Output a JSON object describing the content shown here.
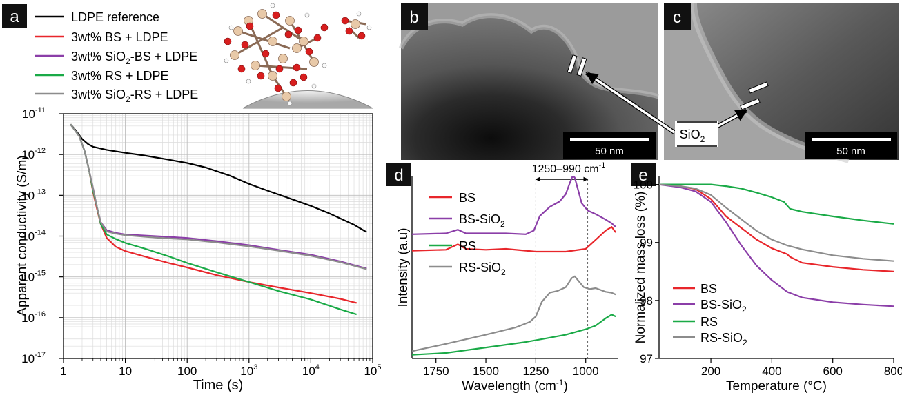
{
  "panels": {
    "a": "a",
    "b": "b",
    "c": "c",
    "d": "d",
    "e": "e"
  },
  "scale_bar": {
    "b": "50 nm",
    "c": "50 nm"
  },
  "sio2_label": {
    "base": "SiO",
    "sub": "2"
  },
  "chart_data": [
    {
      "id": "a",
      "type": "line",
      "x_scale": "log",
      "y_scale": "log",
      "xlabel": "Time (s)",
      "ylabel": "Apparent conductivity (S/m)",
      "xlim": [
        1,
        100000
      ],
      "ylim": [
        1e-17,
        1e-11
      ],
      "x_ticks": [
        {
          "v": 1,
          "label": "1"
        },
        {
          "v": 10,
          "label": "10"
        },
        {
          "v": 100,
          "label": "100"
        },
        {
          "v": 1000,
          "base": "10",
          "exp": "3"
        },
        {
          "v": 10000,
          "base": "10",
          "exp": "4"
        },
        {
          "v": 100000,
          "base": "10",
          "exp": "5"
        }
      ],
      "y_ticks": [
        {
          "v": -17,
          "base": "10",
          "exp": "-17"
        },
        {
          "v": -16,
          "base": "10",
          "exp": "-16"
        },
        {
          "v": -15,
          "base": "10",
          "exp": "-15"
        },
        {
          "v": -14,
          "base": "10",
          "exp": "-14"
        },
        {
          "v": -13,
          "base": "10",
          "exp": "-13"
        },
        {
          "v": -12,
          "base": "10",
          "exp": "-12"
        },
        {
          "v": -11,
          "base": "10",
          "exp": "-11"
        }
      ],
      "grid": true,
      "legend_position": "top-left outside",
      "series": [
        {
          "name": "LDPE reference",
          "name_parts": [
            "LDPE reference"
          ],
          "color": "#000000",
          "points": [
            [
              1.3,
              5.5e-12
            ],
            [
              1.6,
              3.8e-12
            ],
            [
              2.0,
              2.4e-12
            ],
            [
              2.5,
              1.8e-12
            ],
            [
              3,
              1.55e-12
            ],
            [
              5,
              1.3e-12
            ],
            [
              10,
              1.1e-12
            ],
            [
              20,
              9.5e-13
            ],
            [
              50,
              7.5e-13
            ],
            [
              100,
              6.2e-13
            ],
            [
              200,
              4.8e-13
            ],
            [
              500,
              3e-13
            ],
            [
              1000,
              1.9e-13
            ],
            [
              2000,
              1.3e-13
            ],
            [
              5000,
              8e-14
            ],
            [
              10000,
              5.5e-14
            ],
            [
              20000,
              3.6e-14
            ],
            [
              50000,
              1.9e-14
            ],
            [
              80000,
              1.25e-14
            ]
          ]
        },
        {
          "name": "3wt% BS + LDPE",
          "name_parts": [
            "3wt% BS + LDPE"
          ],
          "color": "#e8262b",
          "points": [
            [
              1.3,
              5.5e-12
            ],
            [
              1.8,
              2.8e-12
            ],
            [
              2.2,
              1.2e-12
            ],
            [
              2.6,
              4e-13
            ],
            [
              3,
              1.2e-13
            ],
            [
              3.5,
              4.5e-14
            ],
            [
              4,
              2e-14
            ],
            [
              5,
              9e-15
            ],
            [
              7,
              5.5e-15
            ],
            [
              10,
              4.3e-15
            ],
            [
              20,
              3.2e-15
            ],
            [
              50,
              2.2e-15
            ],
            [
              100,
              1.7e-15
            ],
            [
              300,
              1.1e-15
            ],
            [
              1000,
              7.5e-16
            ],
            [
              3000,
              5.5e-16
            ],
            [
              10000,
              4e-16
            ],
            [
              30000,
              2.9e-16
            ],
            [
              55000,
              2.3e-16
            ]
          ]
        },
        {
          "name": "3wt% SiO2-BS + LDPE",
          "name_parts": [
            "3wt% SiO",
            "2",
            "-BS + LDPE"
          ],
          "color": "#8b3ea8",
          "points": [
            [
              1.3,
              5.5e-12
            ],
            [
              1.8,
              2.8e-12
            ],
            [
              2.2,
              1.2e-12
            ],
            [
              2.6,
              4e-13
            ],
            [
              3,
              1.5e-13
            ],
            [
              3.5,
              5e-14
            ],
            [
              4,
              2.2e-14
            ],
            [
              5,
              1.4e-14
            ],
            [
              7,
              1.2e-14
            ],
            [
              10,
              1.1e-14
            ],
            [
              30,
              1e-14
            ],
            [
              100,
              9e-15
            ],
            [
              300,
              7.5e-15
            ],
            [
              1000,
              6e-15
            ],
            [
              3000,
              4.6e-15
            ],
            [
              10000,
              3.5e-15
            ],
            [
              30000,
              2.4e-15
            ],
            [
              80000,
              1.6e-15
            ]
          ]
        },
        {
          "name": "3wt% RS + LDPE",
          "name_parts": [
            "3wt% RS + LDPE"
          ],
          "color": "#1aaa47",
          "points": [
            [
              1.3,
              5.5e-12
            ],
            [
              1.8,
              2.8e-12
            ],
            [
              2.2,
              1.2e-12
            ],
            [
              2.6,
              4e-13
            ],
            [
              3,
              1.3e-13
            ],
            [
              3.5,
              5e-14
            ],
            [
              4,
              2e-14
            ],
            [
              5,
              1.1e-14
            ],
            [
              7,
              8.5e-15
            ],
            [
              10,
              6.8e-15
            ],
            [
              20,
              5e-15
            ],
            [
              50,
              3.2e-15
            ],
            [
              100,
              2.2e-15
            ],
            [
              300,
              1.3e-15
            ],
            [
              1000,
              7.5e-16
            ],
            [
              3000,
              4.5e-16
            ],
            [
              10000,
              2.8e-16
            ],
            [
              30000,
              1.6e-16
            ],
            [
              55000,
              1.2e-16
            ]
          ]
        },
        {
          "name": "3wt% SiO2-RS + LDPE",
          "name_parts": [
            "3wt% SiO",
            "2",
            "-RS + LDPE"
          ],
          "color": "#8c8c8c",
          "points": [
            [
              1.3,
              5.5e-12
            ],
            [
              1.8,
              2.8e-12
            ],
            [
              2.2,
              1.2e-12
            ],
            [
              2.6,
              4e-13
            ],
            [
              3,
              1.5e-13
            ],
            [
              3.5,
              5e-14
            ],
            [
              4,
              2.2e-14
            ],
            [
              5,
              1.3e-14
            ],
            [
              7,
              1.15e-14
            ],
            [
              10,
              1.05e-14
            ],
            [
              30,
              9.2e-15
            ],
            [
              100,
              8.3e-15
            ],
            [
              300,
              7e-15
            ],
            [
              1000,
              5.6e-15
            ],
            [
              3000,
              4.4e-15
            ],
            [
              10000,
              3.3e-15
            ],
            [
              30000,
              2.3e-15
            ],
            [
              80000,
              1.55e-15
            ]
          ]
        }
      ]
    },
    {
      "id": "d",
      "type": "line",
      "xlabel": "Wavelength (cm",
      "xlabel_sup": "-1",
      "xlabel_end": ")",
      "ylabel": "Intensity (a.u)",
      "xlim": [
        1870,
        840
      ],
      "x_reversed": true,
      "x_ticks": [
        1750,
        1500,
        1250,
        1000
      ],
      "annotation": {
        "text": "1250–990 cm",
        "sup": "-1",
        "from": 1250,
        "to": 990
      },
      "legend_position": "top-left",
      "series": [
        {
          "name": "BS",
          "name_parts": [
            "BS"
          ],
          "color": "#e8262b",
          "points": [
            [
              1870,
              0.59
            ],
            [
              1700,
              0.595
            ],
            [
              1640,
              0.625
            ],
            [
              1600,
              0.6
            ],
            [
              1500,
              0.595
            ],
            [
              1400,
              0.6
            ],
            [
              1300,
              0.59
            ],
            [
              1250,
              0.585
            ],
            [
              1100,
              0.585
            ],
            [
              1000,
              0.6
            ],
            [
              950,
              0.65
            ],
            [
              900,
              0.7
            ],
            [
              870,
              0.72
            ],
            [
              850,
              0.69
            ]
          ]
        },
        {
          "name": "BS-SiO2",
          "name_parts": [
            "BS-SiO",
            "2"
          ],
          "color": "#8b3ea8",
          "points": [
            [
              1870,
              0.68
            ],
            [
              1700,
              0.685
            ],
            [
              1640,
              0.705
            ],
            [
              1600,
              0.685
            ],
            [
              1500,
              0.685
            ],
            [
              1400,
              0.685
            ],
            [
              1300,
              0.68
            ],
            [
              1260,
              0.7
            ],
            [
              1230,
              0.78
            ],
            [
              1180,
              0.83
            ],
            [
              1130,
              0.86
            ],
            [
              1100,
              0.9
            ],
            [
              1080,
              0.96
            ],
            [
              1065,
              1.0
            ],
            [
              1055,
              0.99
            ],
            [
              1040,
              0.93
            ],
            [
              1020,
              0.85
            ],
            [
              990,
              0.81
            ],
            [
              950,
              0.79
            ],
            [
              900,
              0.76
            ],
            [
              870,
              0.74
            ],
            [
              850,
              0.72
            ]
          ]
        },
        {
          "name": "RS",
          "name_parts": [
            "RS"
          ],
          "color": "#1aaa47",
          "points": [
            [
              1870,
              0.02
            ],
            [
              1700,
              0.03
            ],
            [
              1500,
              0.06
            ],
            [
              1300,
              0.09
            ],
            [
              1200,
              0.11
            ],
            [
              1100,
              0.13
            ],
            [
              1000,
              0.16
            ],
            [
              950,
              0.18
            ],
            [
              900,
              0.22
            ],
            [
              870,
              0.24
            ],
            [
              850,
              0.23
            ]
          ]
        },
        {
          "name": "RS-SiO2",
          "name_parts": [
            "RS-SiO",
            "2"
          ],
          "color": "#8c8c8c",
          "points": [
            [
              1870,
              0.04
            ],
            [
              1700,
              0.08
            ],
            [
              1500,
              0.13
            ],
            [
              1350,
              0.17
            ],
            [
              1280,
              0.2
            ],
            [
              1250,
              0.23
            ],
            [
              1220,
              0.31
            ],
            [
              1180,
              0.36
            ],
            [
              1140,
              0.37
            ],
            [
              1100,
              0.39
            ],
            [
              1070,
              0.44
            ],
            [
              1055,
              0.45
            ],
            [
              1040,
              0.43
            ],
            [
              1010,
              0.39
            ],
            [
              980,
              0.38
            ],
            [
              950,
              0.385
            ],
            [
              900,
              0.365
            ],
            [
              870,
              0.36
            ],
            [
              850,
              0.35
            ]
          ]
        }
      ]
    },
    {
      "id": "e",
      "type": "line",
      "xlabel": "Temperature (°C)",
      "ylabel": "Normalized mass loss (%)",
      "xlim": [
        30,
        800
      ],
      "ylim": [
        97,
        100.15
      ],
      "x_ticks": [
        200,
        400,
        600,
        800
      ],
      "y_ticks": [
        97,
        98,
        99,
        100
      ],
      "legend_position": "bottom-left",
      "series": [
        {
          "name": "BS",
          "name_parts": [
            "BS"
          ],
          "color": "#e8262b",
          "points": [
            [
              30,
              100
            ],
            [
              100,
              99.97
            ],
            [
              150,
              99.92
            ],
            [
              200,
              99.75
            ],
            [
              250,
              99.45
            ],
            [
              300,
              99.25
            ],
            [
              350,
              99.05
            ],
            [
              400,
              98.9
            ],
            [
              450,
              98.8
            ],
            [
              460,
              98.75
            ],
            [
              500,
              98.65
            ],
            [
              600,
              98.58
            ],
            [
              700,
              98.53
            ],
            [
              800,
              98.5
            ]
          ]
        },
        {
          "name": "BS-SiO2",
          "name_parts": [
            "BS-SiO",
            "2"
          ],
          "color": "#8b3ea8",
          "points": [
            [
              30,
              100
            ],
            [
              100,
              99.95
            ],
            [
              150,
              99.88
            ],
            [
              200,
              99.7
            ],
            [
              250,
              99.35
            ],
            [
              300,
              98.95
            ],
            [
              350,
              98.6
            ],
            [
              400,
              98.35
            ],
            [
              450,
              98.15
            ],
            [
              500,
              98.05
            ],
            [
              600,
              97.97
            ],
            [
              700,
              97.93
            ],
            [
              800,
              97.9
            ]
          ]
        },
        {
          "name": "RS",
          "name_parts": [
            "RS"
          ],
          "color": "#1aaa47",
          "points": [
            [
              30,
              100
            ],
            [
              100,
              100
            ],
            [
              200,
              100
            ],
            [
              250,
              99.97
            ],
            [
              300,
              99.93
            ],
            [
              350,
              99.86
            ],
            [
              400,
              99.78
            ],
            [
              440,
              99.7
            ],
            [
              460,
              99.58
            ],
            [
              500,
              99.53
            ],
            [
              600,
              99.45
            ],
            [
              700,
              99.38
            ],
            [
              800,
              99.32
            ]
          ]
        },
        {
          "name": "RS-SiO2",
          "name_parts": [
            "RS-SiO",
            "2"
          ],
          "color": "#8c8c8c",
          "points": [
            [
              30,
              100
            ],
            [
              100,
              99.97
            ],
            [
              150,
              99.93
            ],
            [
              200,
              99.82
            ],
            [
              250,
              99.6
            ],
            [
              300,
              99.4
            ],
            [
              350,
              99.2
            ],
            [
              400,
              99.05
            ],
            [
              450,
              98.95
            ],
            [
              500,
              98.88
            ],
            [
              600,
              98.78
            ],
            [
              700,
              98.72
            ],
            [
              800,
              98.68
            ]
          ]
        }
      ]
    }
  ]
}
